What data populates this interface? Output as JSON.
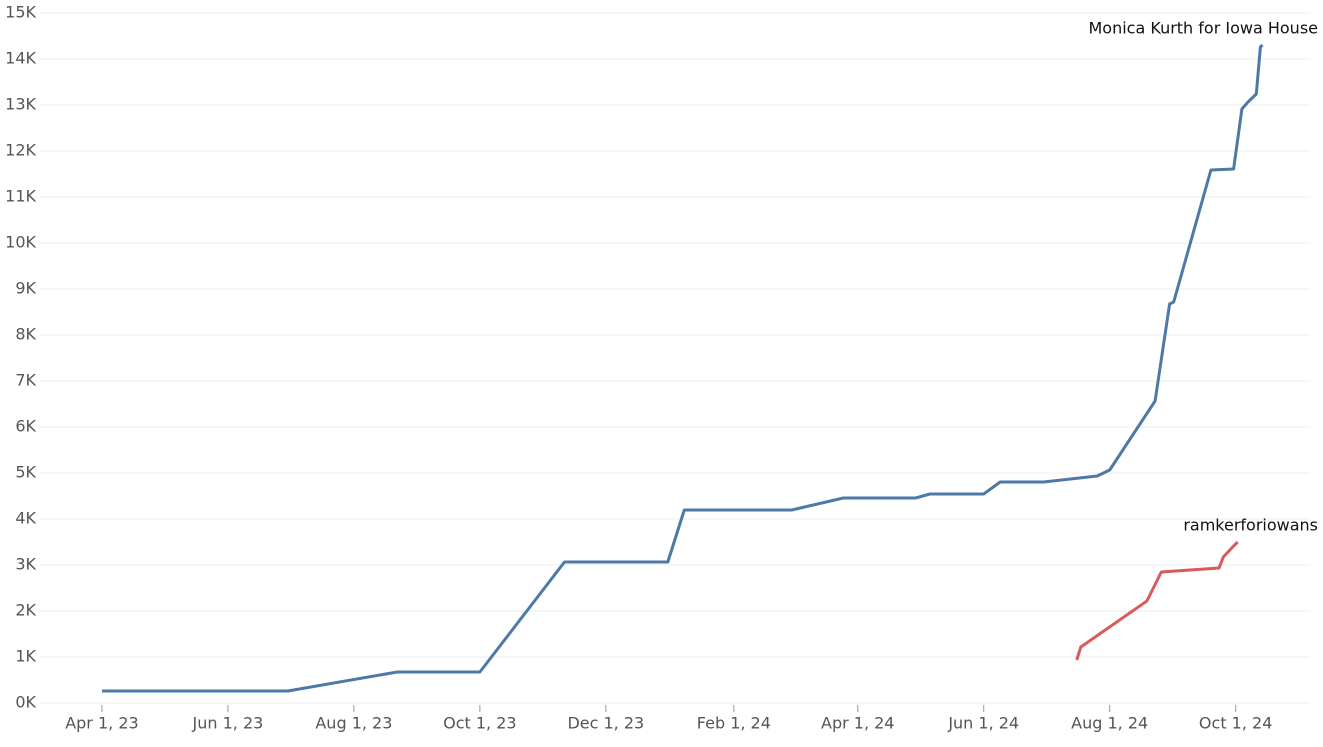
{
  "chart_data": {
    "type": "line",
    "xlim": [
      "2023-03-02",
      "2024-11-06"
    ],
    "xticks": [
      {
        "value": "2023-04-01",
        "label": "Apr 1, 23"
      },
      {
        "value": "2023-06-01",
        "label": "Jun 1, 23"
      },
      {
        "value": "2023-08-01",
        "label": "Aug 1, 23"
      },
      {
        "value": "2023-10-01",
        "label": "Oct 1, 23"
      },
      {
        "value": "2023-12-01",
        "label": "Dec 1, 23"
      },
      {
        "value": "2024-02-01",
        "label": "Feb 1, 24"
      },
      {
        "value": "2024-04-01",
        "label": "Apr 1, 24"
      },
      {
        "value": "2024-06-01",
        "label": "Jun 1, 24"
      },
      {
        "value": "2024-08-01",
        "label": "Aug 1, 24"
      },
      {
        "value": "2024-10-01",
        "label": "Oct 1, 24"
      }
    ],
    "ylim": [
      0,
      15000
    ],
    "yticks": [
      {
        "value": 0,
        "label": "0K"
      },
      {
        "value": 1000,
        "label": "1K"
      },
      {
        "value": 2000,
        "label": "2K"
      },
      {
        "value": 3000,
        "label": "3K"
      },
      {
        "value": 4000,
        "label": "4K"
      },
      {
        "value": 5000,
        "label": "5K"
      },
      {
        "value": 6000,
        "label": "6K"
      },
      {
        "value": 7000,
        "label": "7K"
      },
      {
        "value": 8000,
        "label": "8K"
      },
      {
        "value": 9000,
        "label": "9K"
      },
      {
        "value": 10000,
        "label": "10K"
      },
      {
        "value": 11000,
        "label": "11K"
      },
      {
        "value": 12000,
        "label": "12K"
      },
      {
        "value": 13000,
        "label": "13K"
      },
      {
        "value": 14000,
        "label": "14K"
      },
      {
        "value": 15000,
        "label": "15K"
      }
    ],
    "grid": true,
    "series": [
      {
        "name": "Monica Kurth for Iowa House",
        "color": "#4e79a7",
        "x": [
          "2023-04-01",
          "2023-06-30",
          "2023-08-22",
          "2023-10-01",
          "2023-11-11",
          "2023-12-31",
          "2024-01-08",
          "2024-02-29",
          "2024-03-25",
          "2024-04-29",
          "2024-05-06",
          "2024-06-01",
          "2024-06-09",
          "2024-06-30",
          "2024-07-26",
          "2024-08-01",
          "2024-08-23",
          "2024-08-30",
          "2024-09-01",
          "2024-09-19",
          "2024-09-30",
          "2024-10-04",
          "2024-10-07",
          "2024-10-11",
          "2024-10-13",
          "2024-10-14"
        ],
        "values": [
          260,
          260,
          674,
          674,
          3065,
          3065,
          4196,
          4196,
          4457,
          4457,
          4543,
          4543,
          4804,
          4804,
          4935,
          5065,
          6565,
          8674,
          8717,
          11587,
          11609,
          12913,
          13065,
          13239,
          14261,
          14304
        ]
      },
      {
        "name": "ramkerforiowans",
        "color": "#d85a5a",
        "x": [
          "2024-07-16",
          "2024-07-18",
          "2024-08-19",
          "2024-08-26",
          "2024-09-23",
          "2024-09-25",
          "2024-09-30",
          "2024-10-02"
        ],
        "values": [
          935,
          1217,
          2217,
          2848,
          2935,
          3174,
          3413,
          3500
        ]
      }
    ]
  }
}
